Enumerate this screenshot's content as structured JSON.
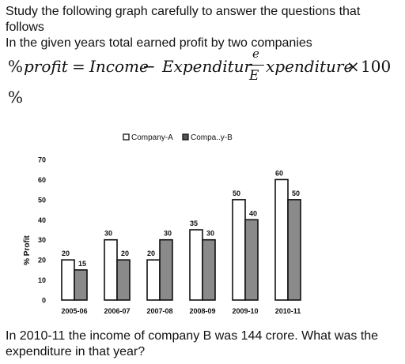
{
  "question": {
    "intro_line1": "Study the following graph carefully to answer the questions that",
    "intro_line2": "follows",
    "intro_line3": "In the given years total earned profit by two companies",
    "formula": {
      "lhs_symbol": "%",
      "lhs_word": "profit",
      "equals": "=",
      "term1": "Income",
      "minus": "−",
      "term2": "Expenditur",
      "frac_numerator": "e",
      "frac_denominator": "E",
      "term3": "xpenditure",
      "times": "×",
      "number": "100",
      "trailing": "%"
    },
    "prompt_line1": "In 2010-11 the income of company B was 144 crore. What was the",
    "prompt_line2": "expenditure in that year?"
  },
  "chart_data": {
    "type": "bar",
    "legend": {
      "placement": "top-center",
      "items": [
        "Company-A",
        "Compa..y-B"
      ]
    },
    "ylabel": "% Profit",
    "xlabel": "",
    "ylim": [
      0,
      70
    ],
    "yticks": [
      0,
      10,
      20,
      30,
      40,
      50,
      60,
      70
    ],
    "grid": false,
    "categories": [
      "2005-06",
      "2006-07",
      "2007-08",
      "2008-09",
      "2009-10",
      "2010-11"
    ],
    "series": [
      {
        "name": "Company-A",
        "values": [
          20,
          30,
          20,
          35,
          50,
          60
        ],
        "color": "#ffffff"
      },
      {
        "name": "Compa..y-B",
        "values": [
          15,
          20,
          30,
          30,
          40,
          50
        ],
        "color": "#8a8a8a"
      }
    ]
  }
}
